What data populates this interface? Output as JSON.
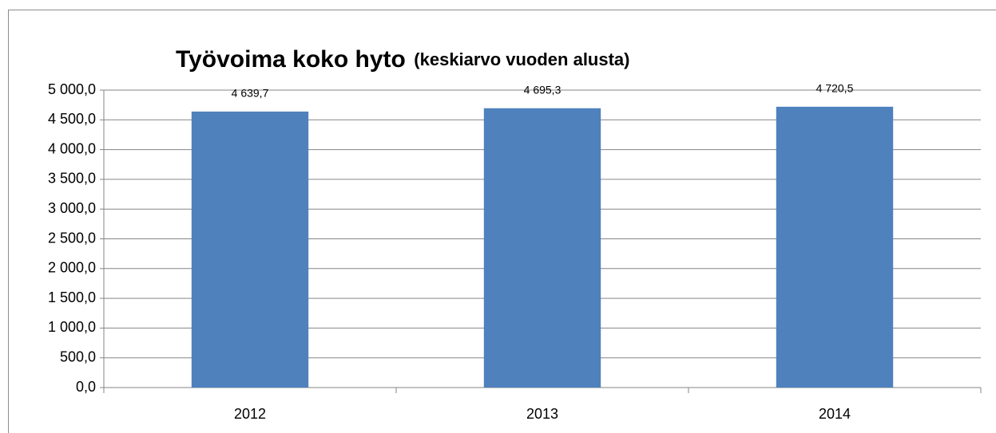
{
  "chart_data": {
    "type": "bar",
    "title": "Työvoima koko hyto",
    "subtitle": "(keskiarvo vuoden alusta)",
    "categories": [
      "2012",
      "2013",
      "2014"
    ],
    "values": [
      4639.7,
      4695.3,
      4720.5
    ],
    "value_labels": [
      "4 639,7",
      "4 695,3",
      "4 720,5"
    ],
    "color": "#4f81bd",
    "ylim": [
      0,
      5000
    ],
    "yticks": [
      {
        "value": 0,
        "label": "0,0"
      },
      {
        "value": 500,
        "label": "500,0"
      },
      {
        "value": 1000,
        "label": "1 000,0"
      },
      {
        "value": 1500,
        "label": "1 500,0"
      },
      {
        "value": 2000,
        "label": "2 000,0"
      },
      {
        "value": 2500,
        "label": "2 500,0"
      },
      {
        "value": 3000,
        "label": "3 000,0"
      },
      {
        "value": 3500,
        "label": "3 500,0"
      },
      {
        "value": 4000,
        "label": "4 000,0"
      },
      {
        "value": 4500,
        "label": "4 500,0"
      },
      {
        "value": 5000,
        "label": "5 000,0"
      }
    ],
    "grid": true
  }
}
